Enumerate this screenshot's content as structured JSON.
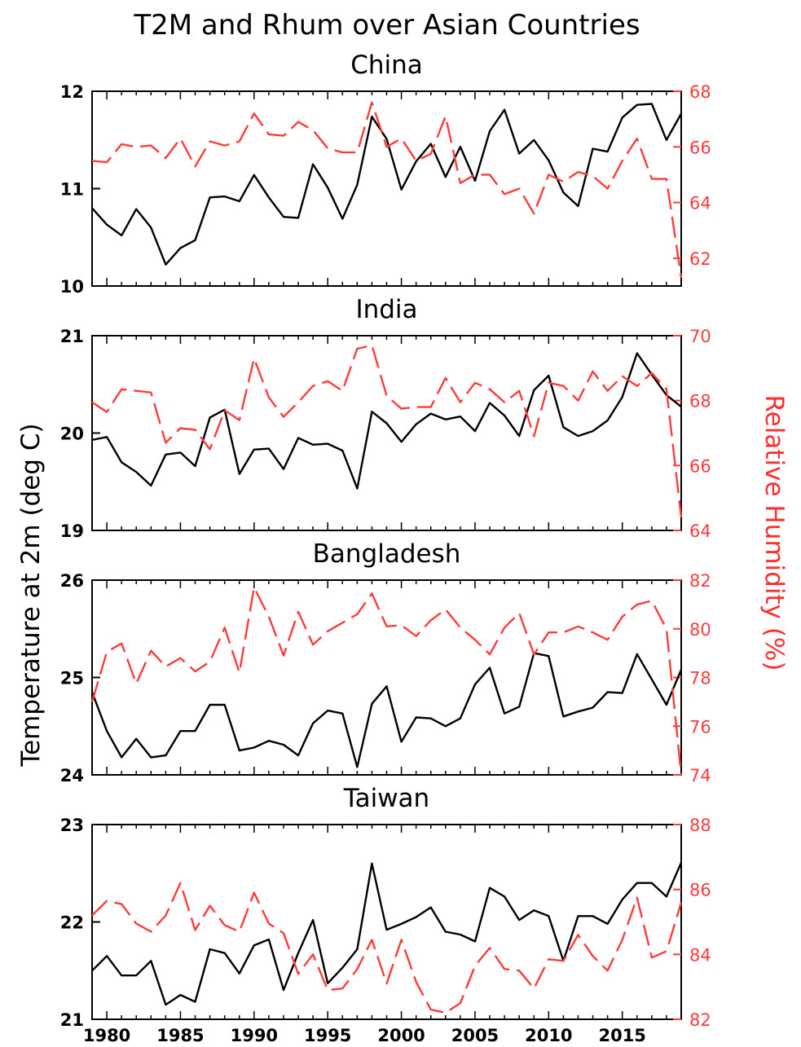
{
  "title": "T2M and Rhum over Asian Countries",
  "left_axis_label": "Temperature at 2m (deg C)",
  "right_axis_label": "Relative Humidity (%)",
  "colors": {
    "temperature": "#000000",
    "humidity": "#ff3b3b"
  },
  "chart_data": [
    {
      "type": "line",
      "panel": "China",
      "x": [
        1979,
        1980,
        1981,
        1982,
        1983,
        1984,
        1985,
        1986,
        1987,
        1988,
        1989,
        1990,
        1991,
        1992,
        1993,
        1994,
        1995,
        1996,
        1997,
        1998,
        1999,
        2000,
        2001,
        2002,
        2003,
        2004,
        2005,
        2006,
        2007,
        2008,
        2009,
        2010,
        2011,
        2012,
        2013,
        2014,
        2015,
        2016,
        2017,
        2018,
        2019
      ],
      "ylim_left": [
        10,
        12
      ],
      "ylim_right": [
        61,
        68
      ],
      "yticks_left": [
        10,
        11,
        12
      ],
      "yticks_right": [
        62,
        64,
        66,
        68
      ],
      "series": [
        {
          "axis": "left",
          "style": "solid",
          "values": [
            10.8,
            10.63,
            10.52,
            10.79,
            10.6,
            10.22,
            10.39,
            10.47,
            10.91,
            10.92,
            10.87,
            11.14,
            10.91,
            10.71,
            10.7,
            11.25,
            11.01,
            10.69,
            11.04,
            11.74,
            11.51,
            10.99,
            11.28,
            11.46,
            11.12,
            11.43,
            11.08,
            11.59,
            11.81,
            11.36,
            11.5,
            11.29,
            10.96,
            10.82,
            11.41,
            11.38,
            11.73,
            11.86,
            11.87,
            11.5,
            11.77
          ]
        },
        {
          "axis": "right",
          "style": "dashed",
          "values": [
            65.5,
            65.45,
            66.1,
            66.0,
            66.05,
            65.6,
            66.3,
            65.3,
            66.2,
            66.05,
            66.2,
            67.2,
            66.45,
            66.4,
            66.9,
            66.6,
            65.95,
            65.8,
            65.8,
            67.6,
            66.0,
            66.3,
            65.5,
            65.75,
            67.1,
            64.7,
            65.0,
            65.0,
            64.3,
            64.5,
            63.6,
            65.0,
            64.75,
            65.1,
            64.95,
            64.5,
            65.5,
            66.3,
            64.85,
            64.85,
            61.3
          ]
        }
      ]
    },
    {
      "type": "line",
      "panel": "India",
      "x": [
        1979,
        1980,
        1981,
        1982,
        1983,
        1984,
        1985,
        1986,
        1987,
        1988,
        1989,
        1990,
        1991,
        1992,
        1993,
        1994,
        1995,
        1996,
        1997,
        1998,
        1999,
        2000,
        2001,
        2002,
        2003,
        2004,
        2005,
        2006,
        2007,
        2008,
        2009,
        2010,
        2011,
        2012,
        2013,
        2014,
        2015,
        2016,
        2017,
        2018,
        2019
      ],
      "ylim_left": [
        19,
        21
      ],
      "ylim_right": [
        64,
        70
      ],
      "yticks_left": [
        19,
        20,
        21
      ],
      "yticks_right": [
        64,
        66,
        68,
        70
      ],
      "series": [
        {
          "axis": "left",
          "style": "solid",
          "values": [
            19.93,
            19.96,
            19.7,
            19.6,
            19.46,
            19.78,
            19.8,
            19.66,
            20.16,
            20.24,
            19.58,
            19.83,
            19.84,
            19.63,
            19.95,
            19.88,
            19.89,
            19.82,
            19.43,
            20.22,
            20.1,
            19.91,
            20.09,
            20.2,
            20.14,
            20.17,
            20.02,
            20.31,
            20.18,
            19.97,
            20.44,
            20.59,
            20.06,
            19.97,
            20.02,
            20.13,
            20.37,
            20.82,
            20.6,
            20.39,
            20.27
          ]
        },
        {
          "axis": "right",
          "style": "dashed",
          "values": [
            67.95,
            67.65,
            68.35,
            68.3,
            68.25,
            66.7,
            67.15,
            67.1,
            66.5,
            67.7,
            67.4,
            69.3,
            68.1,
            67.5,
            67.95,
            68.45,
            68.6,
            68.3,
            69.6,
            69.7,
            68.15,
            67.75,
            67.8,
            67.8,
            68.7,
            67.95,
            68.55,
            68.35,
            67.95,
            68.3,
            66.9,
            68.55,
            68.45,
            68.0,
            68.9,
            68.3,
            68.75,
            68.45,
            68.85,
            68.35,
            64.4
          ]
        }
      ]
    },
    {
      "type": "line",
      "panel": "Bangladesh",
      "x": [
        1979,
        1980,
        1981,
        1982,
        1983,
        1984,
        1985,
        1986,
        1987,
        1988,
        1989,
        1990,
        1991,
        1992,
        1993,
        1994,
        1995,
        1996,
        1997,
        1998,
        1999,
        2000,
        2001,
        2002,
        2003,
        2004,
        2005,
        2006,
        2007,
        2008,
        2009,
        2010,
        2011,
        2012,
        2013,
        2014,
        2015,
        2016,
        2017,
        2018,
        2019
      ],
      "ylim_left": [
        24,
        26
      ],
      "ylim_right": [
        74,
        82
      ],
      "yticks_left": [
        24,
        25,
        26
      ],
      "yticks_right": [
        74,
        76,
        78,
        80,
        82
      ],
      "series": [
        {
          "axis": "left",
          "style": "solid",
          "values": [
            24.85,
            24.45,
            24.18,
            24.37,
            24.18,
            24.2,
            24.45,
            24.45,
            24.72,
            24.72,
            24.25,
            24.28,
            24.35,
            24.31,
            24.2,
            24.53,
            24.66,
            24.63,
            24.08,
            24.73,
            24.91,
            24.34,
            24.59,
            24.58,
            24.5,
            24.58,
            24.93,
            25.1,
            24.63,
            24.7,
            25.25,
            25.22,
            24.6,
            24.65,
            24.69,
            24.85,
            24.84,
            25.24,
            24.98,
            24.72,
            25.08
          ]
        },
        {
          "axis": "right",
          "style": "dashed",
          "values": [
            77.0,
            79.05,
            79.4,
            77.75,
            79.1,
            78.45,
            78.8,
            78.25,
            78.65,
            80.05,
            78.2,
            81.7,
            80.5,
            78.9,
            80.7,
            79.35,
            79.9,
            80.25,
            80.6,
            81.45,
            80.1,
            80.15,
            79.7,
            80.35,
            80.8,
            80.05,
            79.55,
            78.95,
            80.05,
            80.65,
            78.95,
            79.85,
            79.85,
            80.1,
            79.85,
            79.55,
            80.5,
            81.0,
            81.15,
            80.0,
            74.0
          ]
        }
      ]
    },
    {
      "type": "line",
      "panel": "Taiwan",
      "x": [
        1979,
        1980,
        1981,
        1982,
        1983,
        1984,
        1985,
        1986,
        1987,
        1988,
        1989,
        1990,
        1991,
        1992,
        1993,
        1994,
        1995,
        1996,
        1997,
        1998,
        1999,
        2000,
        2001,
        2002,
        2003,
        2004,
        2005,
        2006,
        2007,
        2008,
        2009,
        2010,
        2011,
        2012,
        2013,
        2014,
        2015,
        2016,
        2017,
        2018,
        2019
      ],
      "ylim_left": [
        21,
        23
      ],
      "ylim_right": [
        82,
        88
      ],
      "yticks_left": [
        21,
        22,
        23
      ],
      "yticks_right": [
        82,
        84,
        86,
        88
      ],
      "series": [
        {
          "axis": "left",
          "style": "solid",
          "values": [
            21.5,
            21.65,
            21.45,
            21.45,
            21.6,
            21.15,
            21.25,
            21.18,
            21.72,
            21.68,
            21.47,
            21.76,
            21.82,
            21.3,
            21.68,
            22.02,
            21.37,
            21.53,
            21.72,
            22.6,
            21.92,
            21.98,
            22.05,
            22.15,
            21.9,
            21.87,
            21.8,
            22.35,
            22.26,
            22.02,
            22.12,
            22.06,
            21.6,
            22.06,
            22.06,
            21.98,
            22.23,
            22.4,
            22.4,
            22.26,
            22.61
          ]
        },
        {
          "axis": "right",
          "style": "dashed",
          "values": [
            85.2,
            85.65,
            85.55,
            84.95,
            84.7,
            85.2,
            86.2,
            84.75,
            85.5,
            84.9,
            84.7,
            85.9,
            84.95,
            84.65,
            83.4,
            84.0,
            82.9,
            82.95,
            83.55,
            84.45,
            83.1,
            84.45,
            83.15,
            82.3,
            82.2,
            82.5,
            83.65,
            84.2,
            83.55,
            83.5,
            82.95,
            83.85,
            83.8,
            84.6,
            83.95,
            83.5,
            84.45,
            85.75,
            83.9,
            84.1,
            85.6
          ]
        }
      ]
    }
  ],
  "xticks": [
    1980,
    1985,
    1990,
    1995,
    2000,
    2005,
    2010,
    2015
  ]
}
